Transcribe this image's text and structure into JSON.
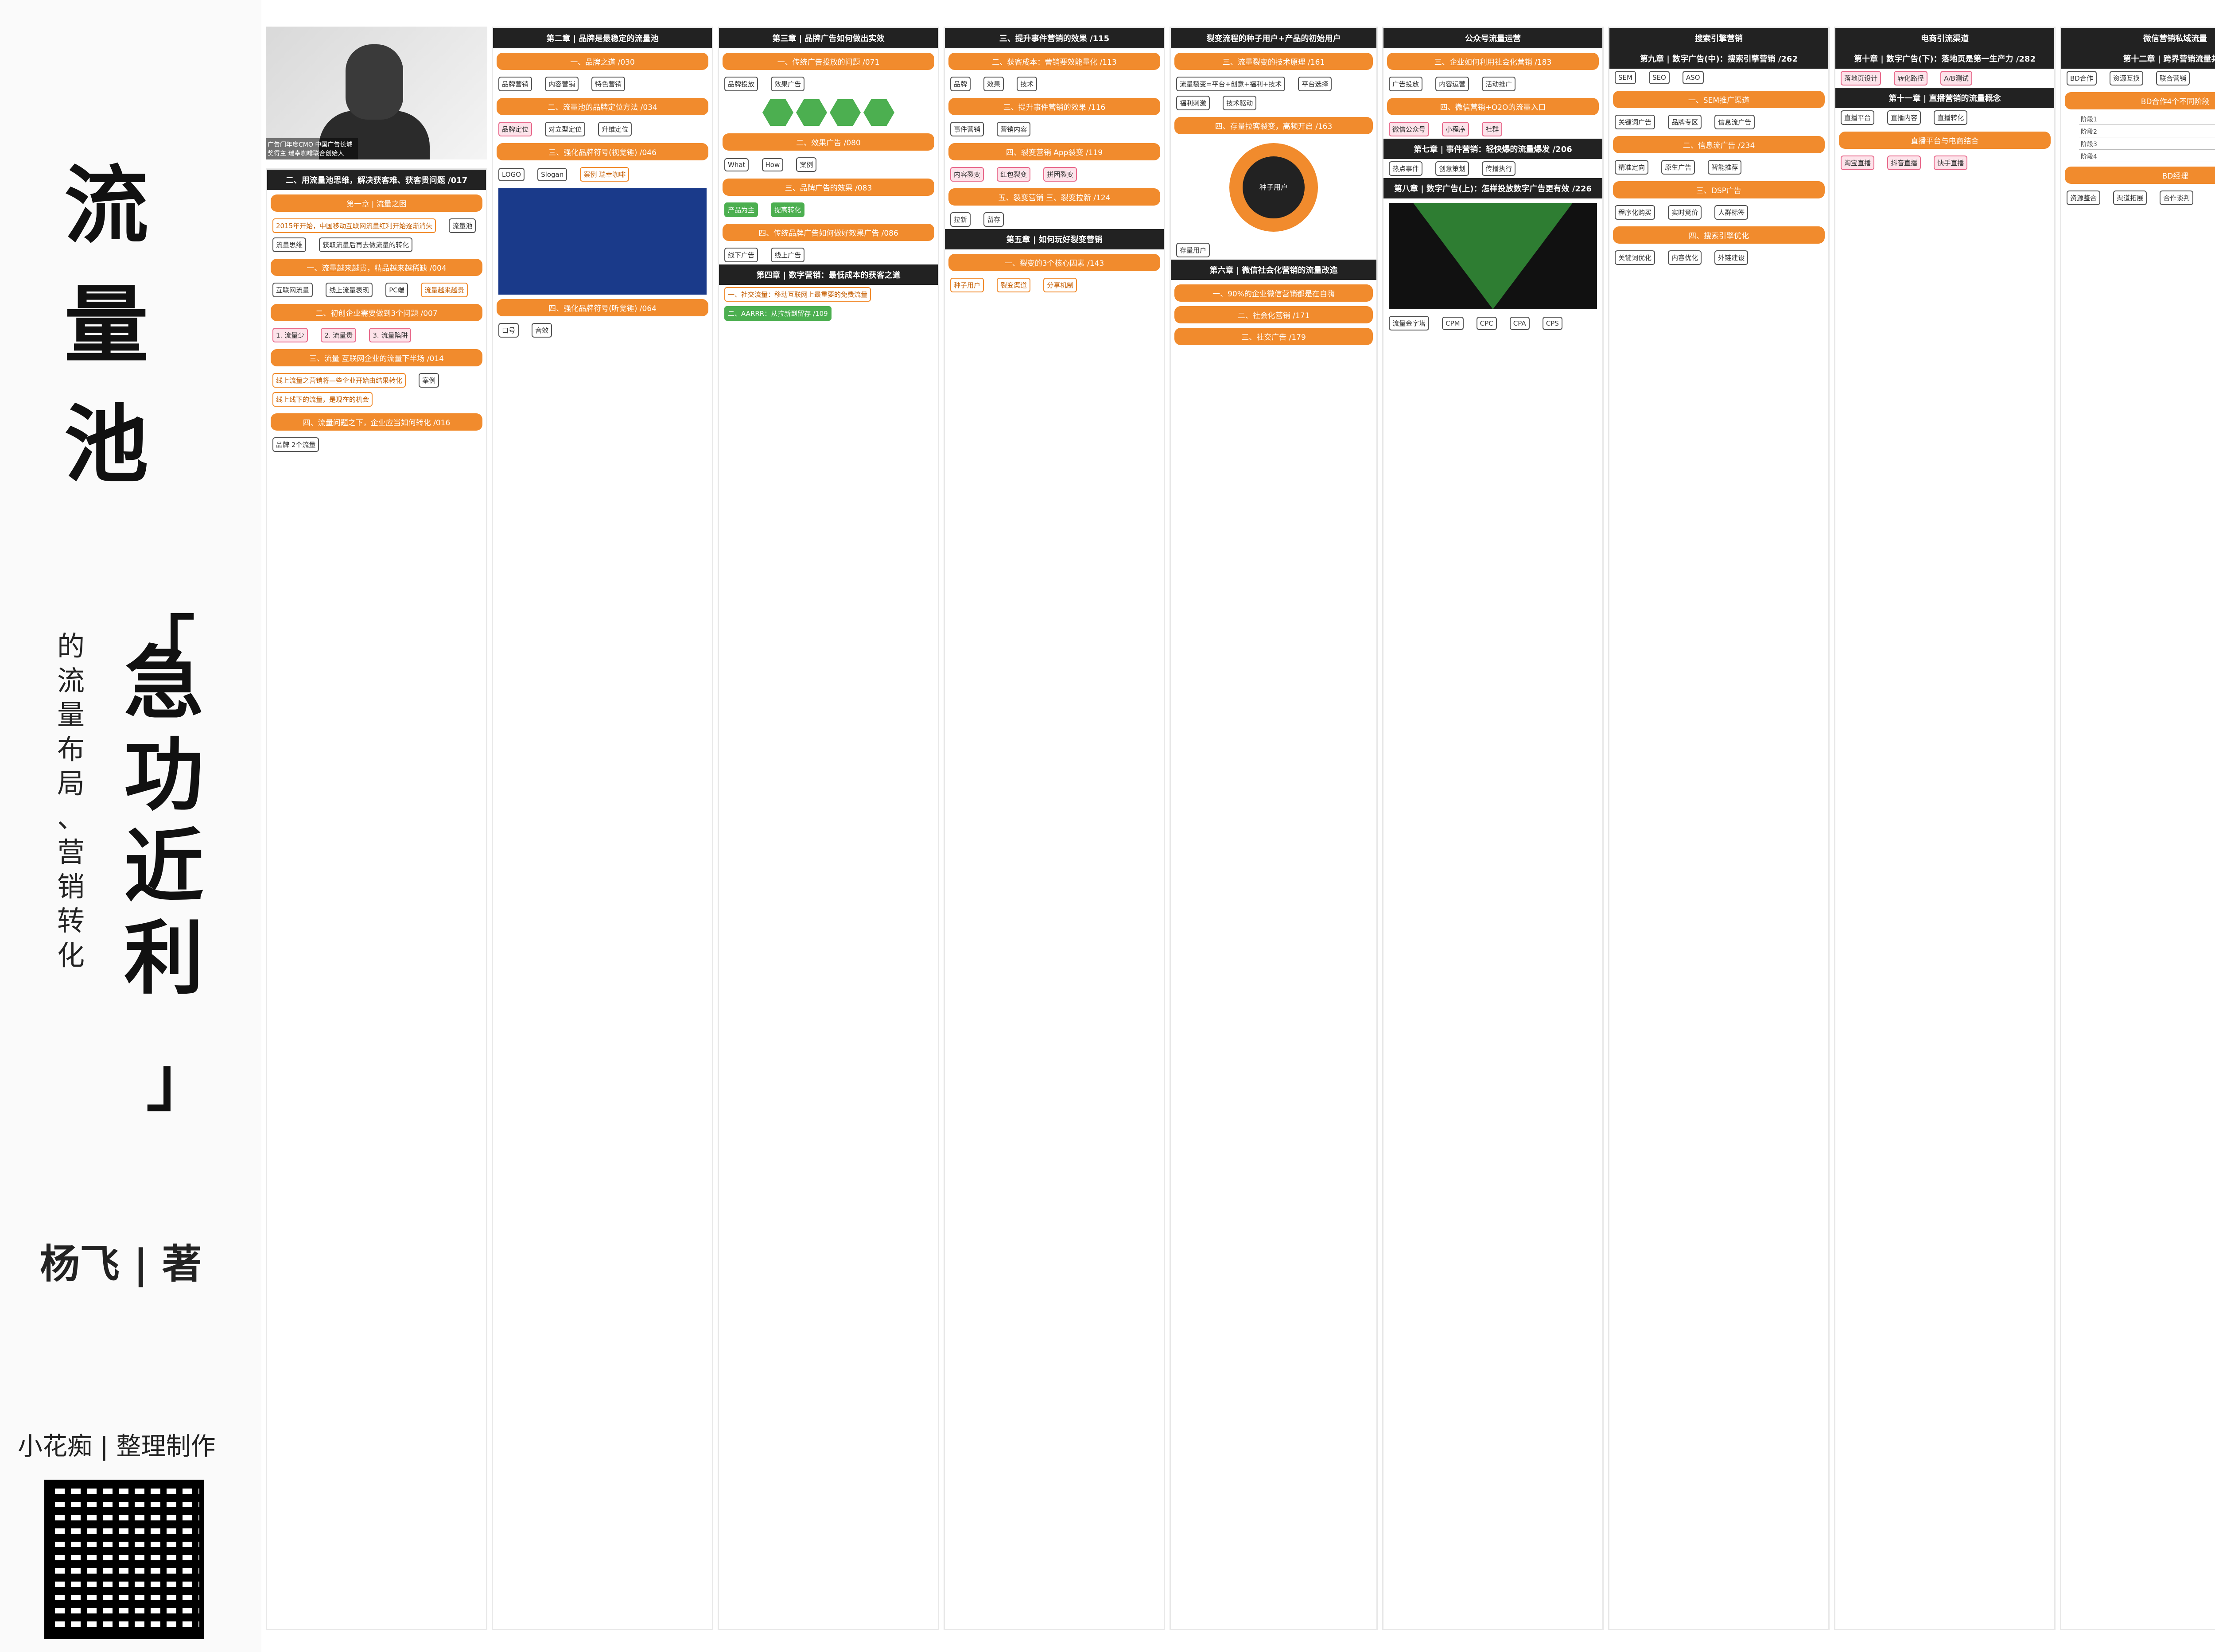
{
  "cover": {
    "title_chars": [
      "流",
      "量",
      "池"
    ],
    "subtitle_left": [
      "的",
      "流",
      "量",
      "布",
      "局",
      "、",
      "营",
      "销",
      "转",
      "化"
    ],
    "subtitle_big": [
      "急",
      "功",
      "近",
      "利"
    ],
    "bracket_open": "「",
    "bracket_close": "」",
    "author": "杨飞 | 著",
    "maker": "小花痴 | 整理制作"
  },
  "photo": {
    "caption": "广告门年度CMO 中国广告长城奖得主 瑞幸咖啡联合创始人"
  },
  "columns": [
    {
      "head": "二、用流量池思维，解决获客难、获客贵问题 /017",
      "sections": [
        {
          "label": "第一章 | 流量之困",
          "nodes": [
            "2015年开始，中国移动互联网流量红利开始逐渐消失",
            "流量池",
            "流量思维",
            "获取流量后再去做流量的转化"
          ]
        },
        {
          "label": "一、流量越来越贵，精品越来越稀缺 /004",
          "nodes": [
            "互联网流量",
            "线上流量表现",
            "PC端",
            "流量越来越贵"
          ]
        },
        {
          "label": "二、初创企业需要做到3个问题 /007",
          "nodes": [
            "1. 流量少",
            "2. 流量贵",
            "3. 流量陷阱"
          ]
        },
        {
          "label": "三、流量 互联网企业的流量下半场 /014",
          "nodes": [
            "线上流量之营销将—些企业开始由结果转化",
            "案例",
            "线上线下的流量，是现在的机会"
          ]
        },
        {
          "label": "四、流量问题之下，企业应当如何转化 /016",
          "nodes": [
            "品牌 2个流量"
          ]
        }
      ]
    },
    {
      "head": "第二章 | 品牌是最稳定的流量池",
      "sections": [
        {
          "label": "一、品牌之道 /030",
          "nodes": [
            "品牌营销",
            "内容营销",
            "特色营销"
          ]
        },
        {
          "label": "二、流量池的品牌定位方法 /034",
          "nodes": [
            "品牌定位",
            "对立型定位",
            "升维定位"
          ]
        },
        {
          "label": "三、强化品牌符号(视觉锤) /046",
          "nodes": [
            "LOGO",
            "Slogan",
            "案例 瑞幸咖啡"
          ]
        },
        {
          "label": "四、强化品牌符号(听觉锤) /064",
          "nodes": [
            "口号",
            "音效"
          ]
        }
      ]
    },
    {
      "head": "第三章 | 品牌广告如何做出实效",
      "sections": [
        {
          "label": "一、传统广告投放的问题 /071",
          "nodes": [
            "品牌投放",
            "效果广告"
          ]
        },
        {
          "label": "二、效果广告 /080",
          "nodes": [
            "What",
            "How",
            "案例"
          ]
        },
        {
          "label": "三、品牌广告的效果 /083",
          "nodes": [
            "产品为主",
            "提高转化"
          ]
        },
        {
          "label": "四、传统品牌广告如何做好效果广告 /086",
          "nodes": [
            "线下广告",
            "线上广告"
          ]
        },
        {
          "label": "第四章 | 数字营销：最低成本的获客之道",
          "nodes": [
            "一、社交流量：移动互联网上最重要的免费流量",
            "二、AARRR：从拉新到留存 /109"
          ]
        }
      ]
    },
    {
      "head": "三、提升事件营销的效果 /115",
      "sections": [
        {
          "label": "二、获客成本：营销要效能量化 /113",
          "nodes": [
            "品牌",
            "效果",
            "技术"
          ]
        },
        {
          "label": "三、提升事件营销的效果 /116",
          "nodes": [
            "事件营销",
            "营销内容"
          ]
        },
        {
          "label": "四、裂变营销 App裂变 /119",
          "nodes": [
            "内容裂变",
            "红包裂变",
            "拼团裂变"
          ]
        },
        {
          "label": "五、裂变营销 三、裂变拉新 /124",
          "nodes": [
            "拉新",
            "留存"
          ]
        },
        {
          "label": "第五章 | 如何玩好裂变营销",
          "nodes": [
            "一、裂变的3个核心因素 /143",
            "种子用户",
            "裂变渠道",
            "分享机制"
          ]
        }
      ]
    },
    {
      "head": "裂变流程的种子用户+产品的初始用户",
      "sections": [
        {
          "label": "三、流量裂变的技术原理 /161",
          "nodes": [
            "流量裂变=平台+创意+福利+技术",
            "平台选择",
            "福利刺激",
            "技术驱动"
          ]
        },
        {
          "label": "四、存量拉客裂变，高频开启 /163",
          "nodes": [
            "存量用户",
            "种子用户"
          ]
        },
        {
          "label": "第六章 | 微信社会化营销的流量改造",
          "nodes": [
            "一、90%的企业微信营销都是在自嗨",
            "二、社会化营销 /171",
            "三、社交广告 /179"
          ]
        }
      ]
    },
    {
      "head": "公众号流量运营",
      "sections": [
        {
          "label": "三、企业如何利用社会化营销 /183",
          "nodes": [
            "广告投放",
            "内容运营",
            "活动推广"
          ]
        },
        {
          "label": "四、微信营销+O2O的流量入口",
          "nodes": [
            "微信公众号",
            "小程序",
            "社群"
          ]
        },
        {
          "label": "第七章 | 事件营销：轻快爆的流量爆发 /206",
          "nodes": [
            "热点事件",
            "创意策划",
            "传播执行"
          ]
        },
        {
          "label": "第八章 | 数字广告(上)：怎样投放数字广告更有效 /226",
          "nodes": [
            "流量金字塔",
            "CPM",
            "CPC",
            "CPA",
            "CPS"
          ]
        }
      ]
    },
    {
      "head": "搜索引擎营销",
      "sections": [
        {
          "label": "第九章 | 数字广告(中)：搜索引擎营销 /262",
          "nodes": [
            "SEM",
            "SEO",
            "ASO"
          ]
        },
        {
          "label": "一、SEM推广渠道",
          "nodes": [
            "关键词广告",
            "品牌专区",
            "信息流广告"
          ]
        },
        {
          "label": "二、信息流广告 /234",
          "nodes": [
            "精准定向",
            "原生广告",
            "智能推荐"
          ]
        },
        {
          "label": "三、DSP广告",
          "nodes": [
            "程序化购买",
            "实时竞价",
            "人群标签"
          ]
        },
        {
          "label": "四、搜索引擎优化",
          "nodes": [
            "关键词优化",
            "内容优化",
            "外链建设"
          ]
        }
      ]
    },
    {
      "head": "电商引流渠道",
      "sections": [
        {
          "label": "第十章 | 数字广告(下)：落地页是第一生产力 /282",
          "nodes": [
            "落地页设计",
            "转化路径",
            "A/B测试"
          ]
        },
        {
          "label": "第十一章 | 直播营销的流量概念",
          "nodes": [
            "直播平台",
            "直播内容",
            "直播转化"
          ]
        },
        {
          "label": "直播平台与电商结合",
          "nodes": [
            "淘宝直播",
            "抖音直播",
            "快手直播"
          ]
        }
      ]
    },
    {
      "head": "微信营销私域流量",
      "sections": [
        {
          "label": "第十二章 | 跨界营销流量共享",
          "nodes": [
            "BD合作",
            "资源互换",
            "联合营销"
          ]
        },
        {
          "label": "BD合作4个不同阶段",
          "nodes": [
            "阶段1",
            "阶段2",
            "阶段3",
            "阶段4"
          ]
        },
        {
          "label": "BD经理",
          "nodes": [
            "资源整合",
            "渠道拓展",
            "合作谈判"
          ]
        }
      ]
    }
  ]
}
